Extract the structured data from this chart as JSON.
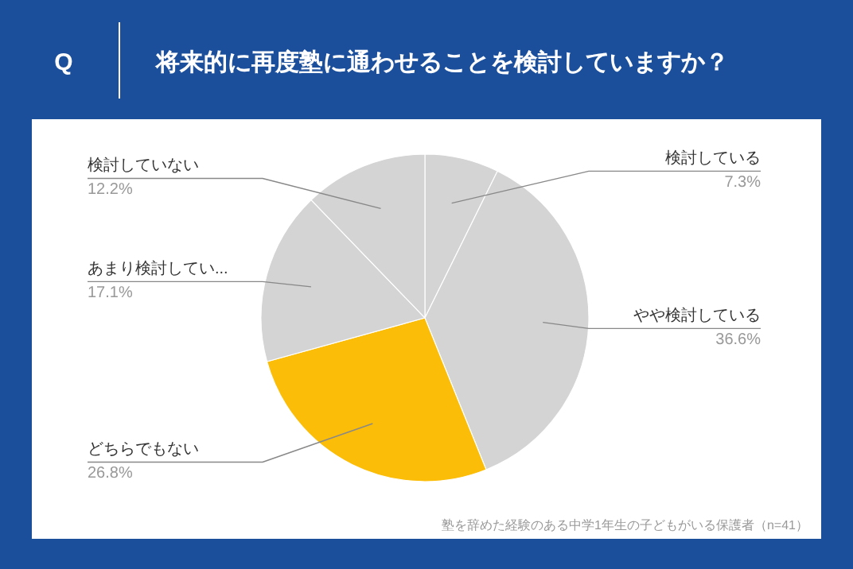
{
  "chart_data": {
    "type": "pie",
    "title": "将来的に再度塾に通わせることを検討していますか？",
    "subtitle": "Q",
    "categories": [
      "検討している",
      "やや検討している",
      "どちらでもない",
      "あまり検討してい...",
      "検討していない"
    ],
    "values": [
      7.3,
      36.6,
      26.8,
      17.1,
      12.2
    ],
    "colors": [
      "#d4d4d4",
      "#d4d4d4",
      "#fbbd08",
      "#d4d4d4",
      "#d4d4d4"
    ],
    "value_labels": [
      "7.3%",
      "36.6%",
      "26.8%",
      "17.1%",
      "12.2%"
    ],
    "annotations": [
      "塾を辞めた経験のある中学1年生の子どもがいる保護者（n=41）"
    ]
  }
}
